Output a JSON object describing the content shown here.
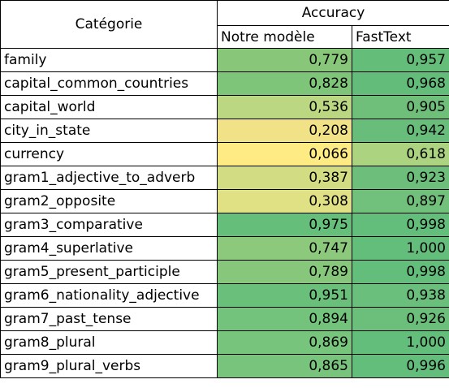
{
  "table": {
    "header": {
      "category_label": "Catégorie",
      "group_label": "Accuracy",
      "columns": [
        "Notre modèle",
        "FastText"
      ]
    },
    "rows": [
      {
        "category": "family",
        "notre": "0,779",
        "fasttext": "0,957",
        "notre_color": "#88c779",
        "fasttext_color": "#65bd7a"
      },
      {
        "category": "capital_common_countries",
        "notre": "0,828",
        "fasttext": "0,968",
        "notre_color": "#7fc579",
        "fasttext_color": "#63bc7a"
      },
      {
        "category": "capital_world",
        "notre": "0,536",
        "fasttext": "0,905",
        "notre_color": "#bbd781",
        "fasttext_color": "#6fbf7a"
      },
      {
        "category": "city_in_state",
        "notre": "0,208",
        "fasttext": "0,942",
        "notre_color": "#f1e187",
        "fasttext_color": "#68bd7a"
      },
      {
        "category": "currency",
        "notre": "0,066",
        "fasttext": "0,618",
        "notre_color": "#ffeb84",
        "fasttext_color": "#abd380"
      },
      {
        "category": "gram1_adjective_to_adverb",
        "notre": "0,387",
        "fasttext": "0,923",
        "notre_color": "#d2dc83",
        "fasttext_color": "#6cbe7a"
      },
      {
        "category": "gram2_opposite",
        "notre": "0,308",
        "fasttext": "0,897",
        "notre_color": "#e0e085",
        "fasttext_color": "#71c07b"
      },
      {
        "category": "gram3_comparative",
        "notre": "0,975",
        "fasttext": "0,998",
        "notre_color": "#66be7b",
        "fasttext_color": "#63be7b"
      },
      {
        "category": "gram4_superlative",
        "notre": "0,747",
        "fasttext": "1,000",
        "notre_color": "#8dc97d",
        "fasttext_color": "#63be7b"
      },
      {
        "category": "gram5_present_participle",
        "notre": "0,789",
        "fasttext": "0,998",
        "notre_color": "#86c77c",
        "fasttext_color": "#63be7b"
      },
      {
        "category": "gram6_nationality_adjective",
        "notre": "0,951",
        "fasttext": "0,938",
        "notre_color": "#6ac07b",
        "fasttext_color": "#69bf7b"
      },
      {
        "category": "gram7_past_tense",
        "notre": "0,894",
        "fasttext": "0,926",
        "notre_color": "#73c37c",
        "fasttext_color": "#6bbf7b"
      },
      {
        "category": "gram8_plural",
        "notre": "0,869",
        "fasttext": "1,000",
        "notre_color": "#77c47c",
        "fasttext_color": "#63be7b"
      },
      {
        "category": "gram9_plural_verbs",
        "notre": "0,865",
        "fasttext": "0,996",
        "notre_color": "#78c47c",
        "fasttext_color": "#63be7b"
      }
    ]
  }
}
